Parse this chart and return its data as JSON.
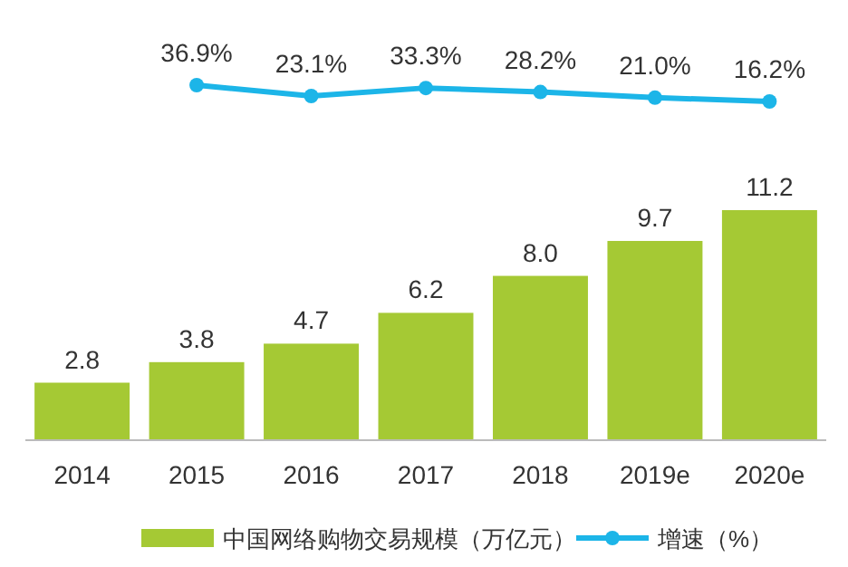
{
  "chart_data": [
    {
      "type": "line",
      "categories": [
        null,
        null,
        null,
        null,
        null,
        null,
        null
      ],
      "series": [
        {
          "name": "增速（%）",
          "color": "#1cb5e8",
          "marker": "circle",
          "values": [
            null,
            36.9,
            23.1,
            33.3,
            28.2,
            21.0,
            16.2
          ],
          "value_labels": [
            null,
            "36.9%",
            "23.1%",
            "33.3%",
            "28.2%",
            "21.0%",
            "16.2%"
          ]
        }
      ],
      "legend": "bottom"
    },
    {
      "type": "bar",
      "categories": [
        "2014",
        "2015",
        "2016",
        "2017",
        "2018",
        "2019e",
        "2020e"
      ],
      "series": [
        {
          "name": "中国网络购物交易规模（万亿元）",
          "color": "#a5c934",
          "values": [
            2.8,
            3.8,
            4.7,
            6.2,
            8.0,
            9.7,
            11.2
          ],
          "value_labels": [
            "2.8",
            "3.8",
            "4.7",
            "6.2",
            "8.0",
            "9.7",
            "11.2"
          ]
        }
      ],
      "legend": "bottom"
    }
  ]
}
